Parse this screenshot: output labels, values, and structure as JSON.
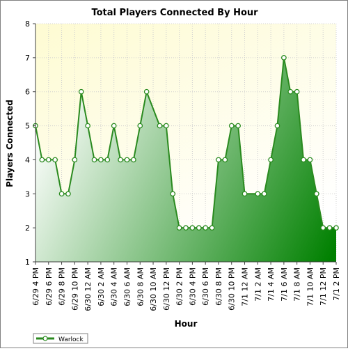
{
  "chart_data": {
    "type": "area",
    "title": "Total Players Connected By Hour",
    "xlabel": "Hour",
    "ylabel": "Players Connected",
    "ylim": [
      1,
      8
    ],
    "yticks": [
      1,
      2,
      3,
      4,
      5,
      6,
      7,
      8
    ],
    "grid": true,
    "legend_position": "bottom-left",
    "categories": [
      "6/29 4 PM",
      "6/29 5 PM",
      "6/29 6 PM",
      "6/29 7 PM",
      "6/29 8 PM",
      "6/29 9 PM",
      "6/29 10 PM",
      "6/29 11 PM",
      "6/30 12 AM",
      "6/30 1 AM",
      "6/30 2 AM",
      "6/30 3 AM",
      "6/30 4 AM",
      "6/30 5 AM",
      "6/30 6 AM",
      "6/30 7 AM",
      "6/30 8 AM",
      "6/30 9 AM",
      "6/30 10 AM",
      "6/30 11 AM",
      "6/30 12 PM",
      "6/30 1 PM",
      "6/30 2 PM",
      "6/30 3 PM",
      "6/30 4 PM",
      "6/30 5 PM",
      "6/30 6 PM",
      "6/30 7 PM",
      "6/30 8 PM",
      "6/30 9 PM",
      "6/30 10 PM",
      "6/30 11 PM",
      "7/1 12 AM",
      "7/1 1 AM",
      "7/1 2 AM",
      "7/1 3 AM",
      "7/1 4 AM",
      "7/1 5 AM",
      "7/1 6 AM",
      "7/1 7 AM",
      "7/1 8 AM",
      "7/1 9 AM",
      "7/1 10 AM",
      "7/1 11 AM",
      "7/1 12 PM",
      "7/1 1 PM",
      "7/1 2 PM"
    ],
    "tick_labels": [
      "6/29 4 PM",
      "6/29 6 PM",
      "6/29 8 PM",
      "6/29 10 PM",
      "6/30 12 AM",
      "6/30 2 AM",
      "6/30 4 AM",
      "6/30 6 AM",
      "6/30 8 AM",
      "6/30 10 AM",
      "6/30 12 PM",
      "6/30 2 PM",
      "6/30 4 PM",
      "6/30 6 PM",
      "6/30 8 PM",
      "6/30 10 PM",
      "7/1 12 AM",
      "7/1 2 AM",
      "7/1 4 AM",
      "7/1 6 AM",
      "7/1 8 AM",
      "7/1 10 AM",
      "7/1 12 PM",
      "7/1 2 PM"
    ],
    "series": [
      {
        "name": "Warlock",
        "values": [
          5,
          4,
          4,
          4,
          3,
          3,
          4,
          6,
          5,
          4,
          4,
          4,
          5,
          4,
          4,
          4,
          5,
          6,
          5.5,
          5,
          5,
          3,
          2,
          2,
          2,
          2,
          2,
          2,
          4,
          4,
          5,
          5,
          3,
          3,
          3,
          3,
          4,
          5,
          7,
          6,
          6,
          4,
          4,
          3,
          2,
          2,
          2
        ],
        "markers": [
          true,
          true,
          true,
          true,
          true,
          true,
          true,
          true,
          true,
          true,
          true,
          true,
          true,
          true,
          true,
          true,
          true,
          true,
          false,
          true,
          true,
          true,
          true,
          true,
          true,
          true,
          true,
          true,
          true,
          true,
          true,
          true,
          true,
          false,
          true,
          true,
          true,
          true,
          true,
          true,
          true,
          true,
          true,
          true,
          true,
          true,
          true
        ]
      }
    ],
    "colors": {
      "line": "#2a8a1f",
      "fill_light": "#ffffff",
      "fill_dark": "#008000",
      "plot_bg_top": "#fefbd2",
      "plot_bg_bottom": "#ffffff",
      "grid": "#d0d0d0"
    }
  }
}
